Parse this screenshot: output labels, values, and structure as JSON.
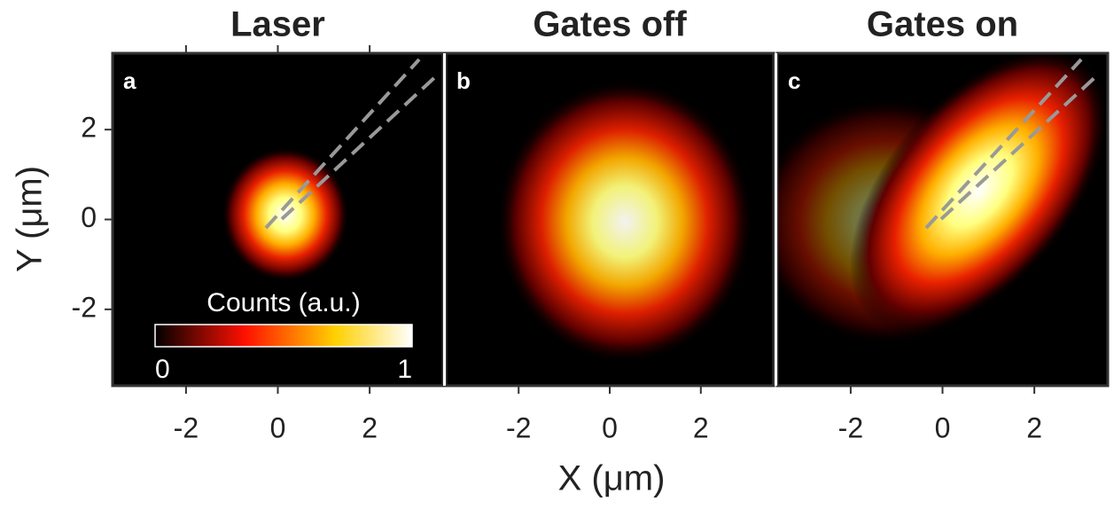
{
  "chart_data": [
    {
      "type": "heatmap",
      "title": "Laser",
      "panel_label": "a",
      "xlim": [
        -3.6,
        3.6
      ],
      "ylim": [
        -3.7,
        3.7
      ],
      "xticks": [
        -2,
        0,
        2
      ],
      "yticks": [
        -2,
        0,
        2
      ],
      "colormap": "hot"
    },
    {
      "type": "heatmap",
      "title": "Gates off",
      "panel_label": "b",
      "xlim": [
        -3.6,
        3.6
      ],
      "ylim": [
        -3.7,
        3.7
      ],
      "xticks": [
        -2,
        0,
        2
      ],
      "colormap": "hot"
    },
    {
      "type": "heatmap",
      "title": "Gates on",
      "panel_label": "c",
      "xlim": [
        -3.6,
        3.6
      ],
      "ylim": [
        -3.7,
        3.7
      ],
      "xticks": [
        -2,
        0,
        2
      ],
      "colormap": "hot"
    }
  ],
  "figure": {
    "xlabel": "X (μm)",
    "ylabel": "Y (μm)"
  },
  "colorbar": {
    "label": "Counts (a.u.)",
    "lim": [
      0,
      1
    ],
    "ticks": [
      0,
      1
    ]
  }
}
